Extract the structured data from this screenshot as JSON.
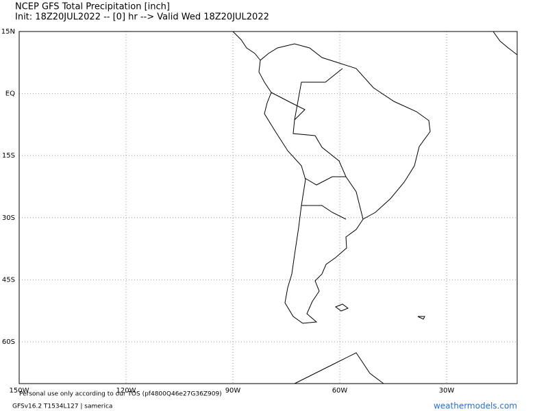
{
  "header": {
    "title": "NCEP GFS Total Precipitation [inch]",
    "subtitle": "Init: 18Z20JUL2022 -- [0] hr --> Valid Wed 18Z20JUL2022"
  },
  "map": {
    "lat_labels": [
      "15N",
      "EQ",
      "15S",
      "30S",
      "45S",
      "60S"
    ],
    "lon_labels": [
      "150W",
      "120W",
      "90W",
      "60W",
      "30W"
    ]
  },
  "footer": {
    "notice": "Personal use only according to our TOS (pf4800Q46e27G36Z909)",
    "model_info": "GFSv16.2 T1534L127 | samerica",
    "site": "weathermodels.com"
  }
}
